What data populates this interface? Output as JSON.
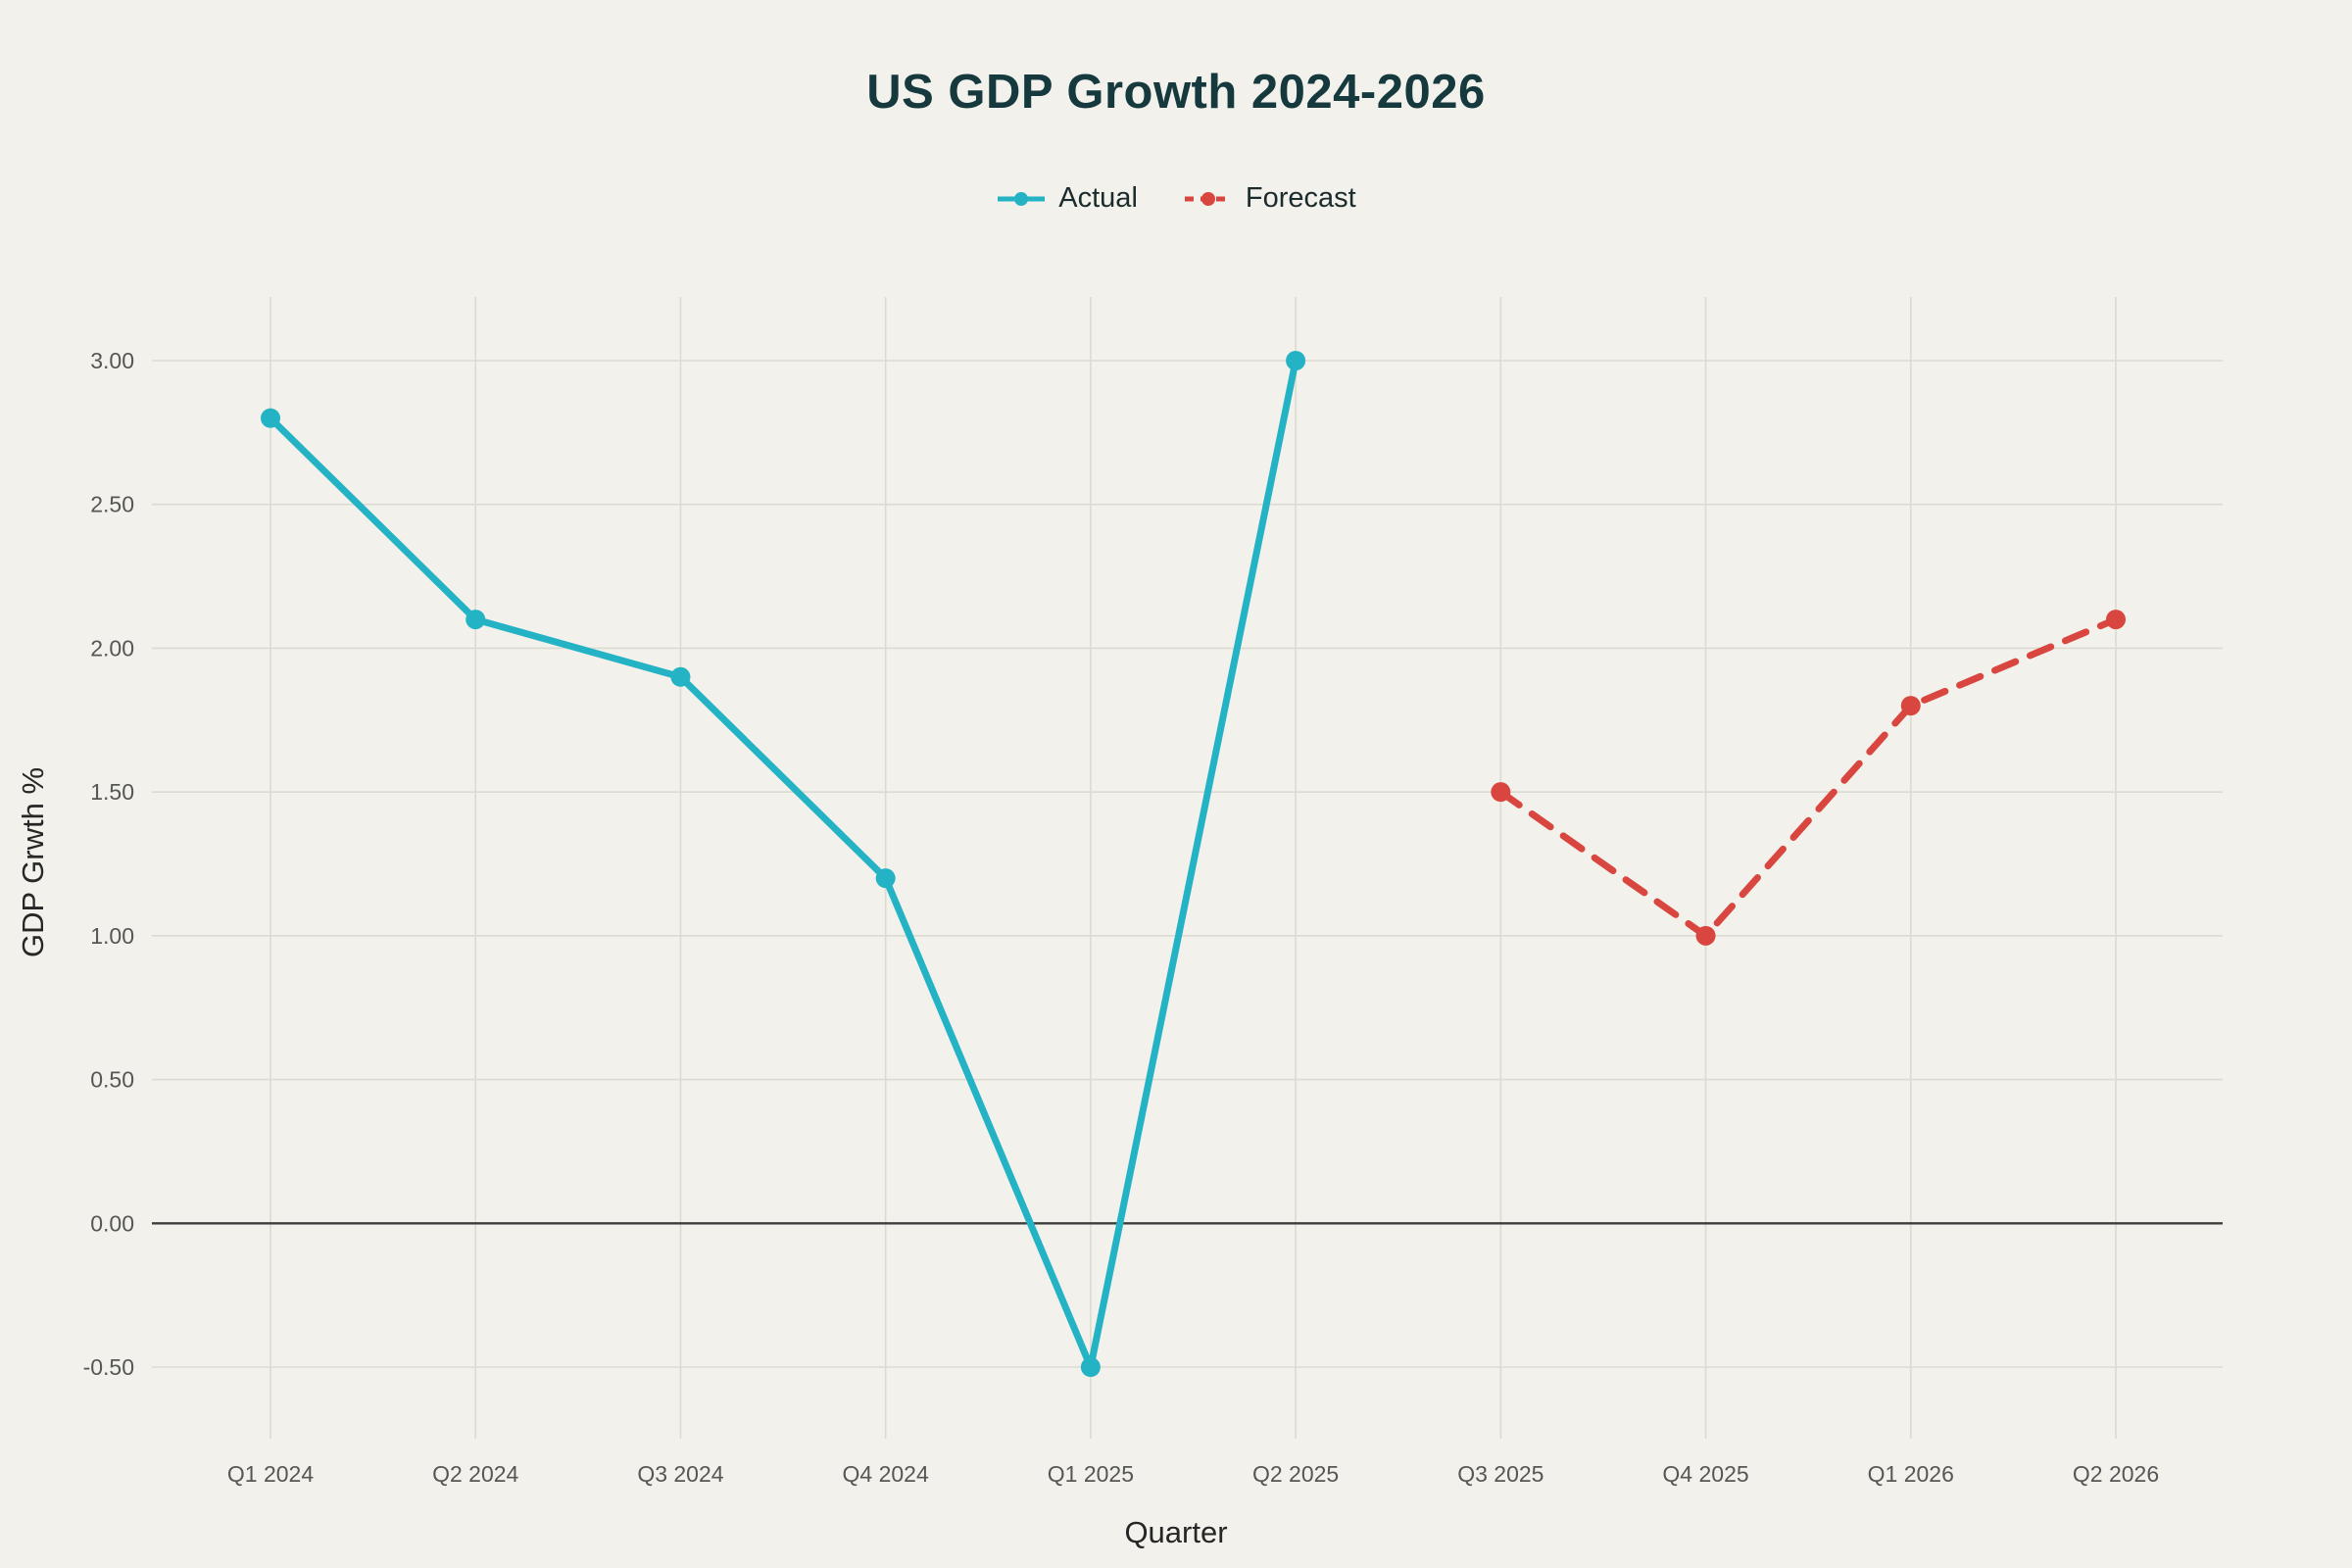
{
  "chart": {
    "title": "US GDP Growth 2024-2026",
    "xlabel": "Quarter",
    "ylabel": "GDP Grwth %"
  },
  "legend": {
    "items": [
      {
        "label": "Actual",
        "color": "#24b3c5",
        "style": "solid"
      },
      {
        "label": "Forecast",
        "color": "#d9453f",
        "style": "dashed"
      }
    ]
  },
  "chart_data": {
    "type": "line",
    "title": "US GDP Growth 2024-2026",
    "xlabel": "Quarter",
    "ylabel": "GDP Grwth %",
    "categories": [
      "Q1 2024",
      "Q2 2024",
      "Q3 2024",
      "Q4 2024",
      "Q1 2025",
      "Q2 2025",
      "Q3 2025",
      "Q4 2025",
      "Q1 2026",
      "Q2 2026"
    ],
    "series": [
      {
        "name": "Actual",
        "color": "#24b3c5",
        "style": "solid",
        "values": [
          2.8,
          2.1,
          1.9,
          1.2,
          -0.5,
          3.0,
          null,
          null,
          null,
          null
        ]
      },
      {
        "name": "Forecast",
        "color": "#d9453f",
        "style": "dashed",
        "values": [
          null,
          null,
          null,
          null,
          null,
          null,
          1.5,
          1.0,
          1.8,
          2.1
        ]
      }
    ],
    "yticks": [
      3.0,
      2.5,
      2.0,
      1.5,
      1.0,
      0.5,
      0.0,
      -0.5
    ],
    "ytick_labels": [
      "3.00",
      "2.50",
      "2.00",
      "1.50",
      "1.00",
      "0.50",
      "0.00",
      "-0.50"
    ],
    "ylim": [
      -0.5,
      3.0
    ],
    "grid": true,
    "zero_line": true,
    "legend_position": "top",
    "background": "#f2f1eb"
  }
}
